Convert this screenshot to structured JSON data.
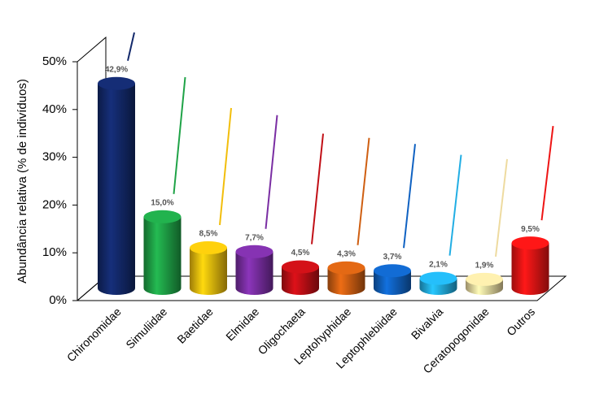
{
  "chart_data": {
    "type": "bar3d",
    "ylabel": "Abundância relativa (% de indivíduos)",
    "categories": [
      "Chironomidae",
      "Simuliidae",
      "Baetidae",
      "Elmidae",
      "Oligochaeta",
      "Leptohyphidae",
      "Leptophlebiidae",
      "Bivalvia",
      "Ceratopogonidae",
      "Outros"
    ],
    "values": [
      42.9,
      15.0,
      8.5,
      7.7,
      4.5,
      4.3,
      3.7,
      2.1,
      1.9,
      9.5
    ],
    "value_labels": [
      "42,9%",
      "15,0%",
      "8,5%",
      "7,7%",
      "4,5%",
      "4,3%",
      "3,7%",
      "2,1%",
      "1,9%",
      "9,5%"
    ],
    "colors": [
      "#13296b",
      "#1fa347",
      "#f2be0c",
      "#7a2ea3",
      "#c10f16",
      "#cf5f12",
      "#1062c2",
      "#22aee4",
      "#eedba0",
      "#ee1515"
    ],
    "ylim": [
      0,
      50
    ],
    "yticks": [
      {
        "value": 0,
        "label": "0%"
      },
      {
        "value": 10,
        "label": "10%"
      },
      {
        "value": 20,
        "label": "20%"
      },
      {
        "value": 30,
        "label": "30%"
      },
      {
        "value": 40,
        "label": "40%"
      },
      {
        "value": 50,
        "label": "50%"
      }
    ]
  }
}
